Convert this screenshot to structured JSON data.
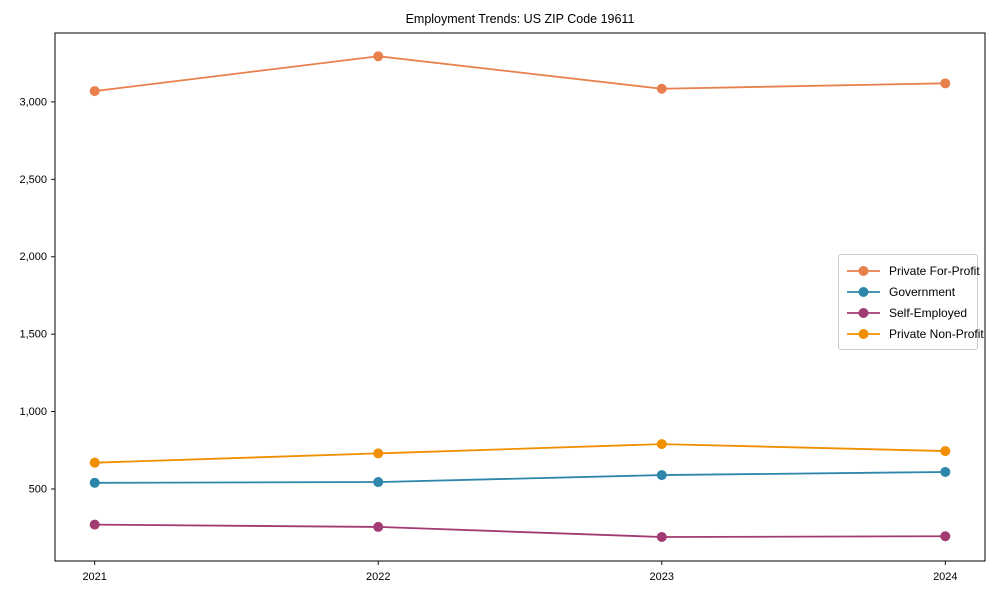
{
  "chart_data": {
    "type": "line",
    "title": "Employment Trends: US ZIP Code 19611",
    "xlabel": "",
    "ylabel": "",
    "x": [
      2021,
      2022,
      2023,
      2024
    ],
    "series": [
      {
        "name": "Private For-Profit",
        "color": "#E8804D",
        "values": [
          3070,
          3295,
          3085,
          3120
        ]
      },
      {
        "name": "Government",
        "color": "#2E86AB",
        "values": [
          540,
          545,
          590,
          610
        ]
      },
      {
        "name": "Self-Employed",
        "color": "#A23B72",
        "values": [
          270,
          255,
          190,
          195
        ]
      },
      {
        "name": "Private Non-Profit",
        "color": "#F18F01",
        "values": [
          670,
          730,
          790,
          745
        ]
      }
    ],
    "yticks": [
      500,
      1000,
      1500,
      2000,
      2500,
      3000
    ],
    "ytick_labels": [
      "500",
      "1,000",
      "1,500",
      "2,000",
      "2,500",
      "3,000"
    ],
    "xtick_labels": [
      "2021",
      "2022",
      "2023",
      "2024"
    ],
    "xlim": [
      2020.86,
      2024.14
    ],
    "ylim": [
      35,
      3445
    ],
    "grid": false,
    "legend_position": "center-right",
    "marker": "circle",
    "axis_color": "#000000",
    "background_color": "#ffffff"
  }
}
